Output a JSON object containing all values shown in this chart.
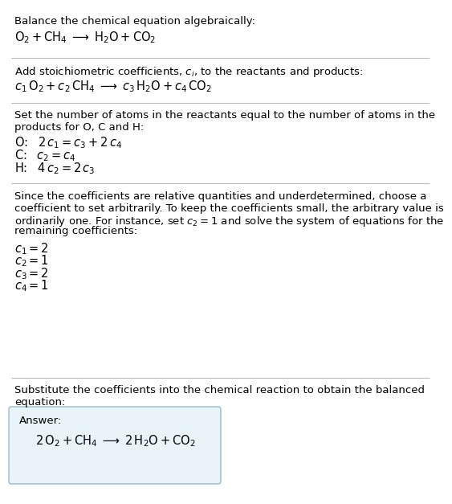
{
  "title_line1": "Balance the chemical equation algebraically:",
  "title_line2_math": "$\\mathrm{O_2 + CH_4 \\;\\longrightarrow\\; H_2O + CO_2}$",
  "section2_intro": "Add stoichiometric coefficients, $c_i$, to the reactants and products:",
  "section2_eq": "$c_1\\, \\mathrm{O_2} + c_2\\, \\mathrm{CH_4} \\;\\longrightarrow\\; c_3\\, \\mathrm{H_2O} + c_4\\, \\mathrm{CO_2}$",
  "section3_intro_line1": "Set the number of atoms in the reactants equal to the number of atoms in the",
  "section3_intro_line2": "products for O, C and H:",
  "section3_O": "O: $\\;\\;2\\,c_1 = c_3 + 2\\,c_4$",
  "section3_C": "C: $\\;\\;c_2 = c_4$",
  "section3_H": "H: $\\;\\;4\\,c_2 = 2\\,c_3$",
  "section4_intro_lines": [
    "Since the coefficients are relative quantities and underdetermined, choose a",
    "coefficient to set arbitrarily. To keep the coefficients small, the arbitrary value is",
    "ordinarily one. For instance, set $c_2 = 1$ and solve the system of equations for the",
    "remaining coefficients:"
  ],
  "section4_c1": "$c_1 = 2$",
  "section4_c2": "$c_2 = 1$",
  "section4_c3": "$c_3 = 2$",
  "section4_c4": "$c_4 = 1$",
  "section5_intro_line1": "Substitute the coefficients into the chemical reaction to obtain the balanced",
  "section5_intro_line2": "equation:",
  "answer_label": "Answer:",
  "answer_eq": "$2\\, \\mathrm{O_2} + \\mathrm{CH_4} \\;\\longrightarrow\\; 2\\, \\mathrm{H_2O} + \\mathrm{CO_2}$",
  "bg_color": "#ffffff",
  "text_color": "#000000",
  "answer_box_facecolor": "#e8f4f8",
  "answer_box_edgecolor": "#99bbcc",
  "divider_color": "#bbbbbb",
  "font_size_prose": 9.5,
  "font_size_math": 10.5
}
